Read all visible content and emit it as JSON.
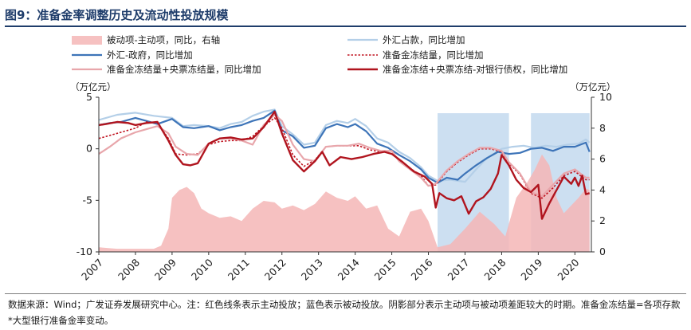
{
  "figure": {
    "title": "图9：准备金率调整历史及流动性投放规模",
    "note": "数据来源：Wind；广发证券发展研究中心。注：红色线条表示主动投放；蓝色表示被动投放。阴影部分表示主动项与被动项差距较大的时期。准备金冻结量=各项存款*大型银行准备金率变动。"
  },
  "chart_data": {
    "type": "line",
    "left_unit": "（万亿元）",
    "right_unit": "（万亿元）",
    "x_ticks": [
      "2007",
      "2008",
      "2009",
      "2010",
      "2011",
      "2012",
      "2013",
      "2014",
      "2015",
      "2016",
      "2017",
      "2018",
      "2019",
      "2020"
    ],
    "xlim": [
      2007.0,
      2020.45
    ],
    "y_left": {
      "ticks": [
        "5",
        "0",
        "-5",
        "-10"
      ],
      "values": [
        5,
        0,
        -5,
        -10
      ],
      "lim": [
        -10,
        5
      ]
    },
    "y_right": {
      "ticks": [
        "10",
        "8",
        "6",
        "4",
        "2",
        "0"
      ],
      "values": [
        10,
        8,
        6,
        4,
        2,
        0
      ],
      "lim": [
        0,
        10
      ]
    },
    "shaded_periods": [
      [
        2016.25,
        2018.2
      ],
      [
        2018.8,
        2020.4
      ]
    ],
    "legend_position": "top",
    "series": [
      {
        "name": "被动项-主动项，同比，右轴",
        "kind": "area",
        "axis": "right",
        "color": "#f4b6b6",
        "x": [
          2007.0,
          2007.5,
          2008.0,
          2008.5,
          2008.7,
          2008.9,
          2009.0,
          2009.2,
          2009.4,
          2009.6,
          2009.8,
          2010.0,
          2010.3,
          2010.6,
          2010.9,
          2011.2,
          2011.5,
          2011.8,
          2012.0,
          2012.3,
          2012.6,
          2012.9,
          2013.2,
          2013.5,
          2013.8,
          2014.0,
          2014.3,
          2014.6,
          2014.9,
          2015.2,
          2015.5,
          2015.8,
          2016.0,
          2016.25,
          2016.6,
          2017.0,
          2017.4,
          2017.8,
          2018.1,
          2018.4,
          2018.7,
          2018.9,
          2019.1,
          2019.3,
          2019.5,
          2019.7,
          2019.9,
          2020.1,
          2020.3,
          2020.4
        ],
        "y": [
          0.3,
          0.2,
          0.2,
          0.2,
          0.4,
          1.5,
          3.5,
          4.0,
          4.2,
          3.8,
          2.8,
          2.5,
          2.2,
          2.3,
          2.0,
          2.8,
          3.3,
          3.2,
          2.8,
          3.0,
          2.7,
          3.1,
          3.9,
          3.5,
          3.3,
          3.6,
          2.8,
          3.0,
          1.5,
          1.0,
          2.6,
          2.8,
          2.0,
          0.3,
          0.5,
          1.5,
          2.6,
          1.8,
          1.0,
          3.5,
          4.5,
          5.3,
          6.3,
          5.6,
          3.5,
          2.5,
          3.0,
          3.5,
          4.1,
          4.0
        ]
      },
      {
        "name": "外汇占款，同比增加",
        "kind": "line",
        "axis": "left",
        "color": "#b4cfe8",
        "width": 2.2,
        "dash": "",
        "x": [
          2007.0,
          2007.5,
          2008.0,
          2008.5,
          2009.0,
          2009.3,
          2009.6,
          2010.0,
          2010.3,
          2010.6,
          2010.9,
          2011.2,
          2011.5,
          2011.8,
          2012.0,
          2012.3,
          2012.6,
          2012.9,
          2013.2,
          2013.5,
          2013.8,
          2014.0,
          2014.3,
          2014.6,
          2014.9,
          2015.2,
          2015.5,
          2015.8,
          2016.0,
          2016.25,
          2016.6,
          2017.0,
          2017.3,
          2017.6,
          2018.0,
          2018.3,
          2018.6,
          2018.9,
          2019.2,
          2019.5,
          2019.8,
          2020.1,
          2020.3,
          2020.4
        ],
        "y": [
          2.8,
          3.3,
          3.5,
          3.2,
          3.0,
          2.2,
          2.3,
          2.2,
          2.0,
          2.4,
          2.6,
          3.2,
          3.6,
          3.8,
          2.2,
          1.4,
          0.4,
          0.6,
          2.3,
          2.7,
          2.5,
          2.9,
          2.2,
          1.0,
          0.6,
          -0.3,
          -0.9,
          -1.8,
          -2.6,
          -3.1,
          -3.0,
          -3.2,
          -2.0,
          -0.9,
          0.0,
          0.2,
          0.3,
          0.1,
          0.3,
          0.2,
          0.4,
          0.5,
          0.9,
          0.6
        ]
      },
      {
        "name": "外汇-政府，同比增加",
        "kind": "line",
        "axis": "left",
        "color": "#3d74b8",
        "width": 2.2,
        "dash": "",
        "x": [
          2007.0,
          2007.3,
          2007.6,
          2008.0,
          2008.3,
          2008.6,
          2009.0,
          2009.3,
          2009.6,
          2010.0,
          2010.3,
          2010.6,
          2010.9,
          2011.2,
          2011.5,
          2011.8,
          2012.0,
          2012.3,
          2012.6,
          2012.9,
          2013.2,
          2013.5,
          2013.8,
          2014.0,
          2014.3,
          2014.6,
          2014.9,
          2015.2,
          2015.5,
          2015.8,
          2016.0,
          2016.25,
          2016.5,
          2016.8,
          2017.0,
          2017.3,
          2017.6,
          2017.9,
          2018.2,
          2018.5,
          2018.8,
          2019.1,
          2019.4,
          2019.7,
          2020.0,
          2020.3,
          2020.4
        ],
        "y": [
          2.3,
          2.5,
          2.6,
          3.0,
          2.7,
          2.4,
          2.9,
          2.1,
          2.0,
          2.2,
          1.8,
          2.1,
          2.3,
          2.7,
          3.0,
          3.7,
          1.8,
          1.2,
          0.1,
          0.3,
          2.0,
          2.4,
          2.1,
          2.4,
          1.7,
          0.5,
          0.1,
          -0.6,
          -1.2,
          -2.0,
          -2.8,
          -3.3,
          -2.8,
          -3.0,
          -2.4,
          -1.6,
          -0.9,
          -0.3,
          -0.5,
          -0.4,
          0.0,
          0.1,
          -0.2,
          0.2,
          0.2,
          0.6,
          -0.3
        ]
      },
      {
        "name": "准备金冻结量，同比增加",
        "kind": "line",
        "axis": "left",
        "color": "#c0121f",
        "width": 1.6,
        "dash": "2.5 2",
        "x": [
          2007.0,
          2007.3,
          2007.6,
          2008.0,
          2008.3,
          2008.6,
          2008.9,
          2009.1,
          2009.4,
          2009.7,
          2010.0,
          2010.3,
          2010.6,
          2010.9,
          2011.2,
          2011.5,
          2011.8,
          2012.0,
          2012.3,
          2012.6,
          2012.9,
          2013.2,
          2013.5,
          2013.8,
          2014.1,
          2014.4,
          2014.7,
          2015.0,
          2015.2,
          2015.5,
          2015.8,
          2016.0,
          2016.2,
          2016.5,
          2016.8,
          2017.1,
          2017.4,
          2017.7,
          2018.0,
          2018.2,
          2018.5,
          2018.8,
          2019.1,
          2019.4,
          2019.7,
          2020.0,
          2020.3,
          2020.4
        ],
        "y": [
          1.0,
          1.3,
          1.6,
          2.0,
          2.6,
          2.5,
          1.0,
          -0.5,
          -0.6,
          -0.5,
          0.4,
          0.7,
          0.8,
          0.8,
          1.2,
          2.2,
          3.0,
          2.0,
          -0.6,
          -1.7,
          -1.1,
          0.2,
          0.3,
          0.3,
          0.3,
          -0.1,
          -0.3,
          -0.2,
          -1.2,
          -1.9,
          -2.6,
          -3.6,
          -3.5,
          -2.2,
          -1.3,
          -0.6,
          0.0,
          0.0,
          -0.3,
          -1.4,
          -2.5,
          -4.3,
          -4.8,
          -3.8,
          -2.6,
          -2.2,
          -3.0,
          -3.0
        ]
      },
      {
        "name": "准备金冻结量+央票冻结量，同比增加",
        "kind": "line",
        "axis": "left",
        "color": "#e8a6ab",
        "width": 2.2,
        "dash": "",
        "x": [
          2007.0,
          2007.3,
          2007.6,
          2008.0,
          2008.3,
          2008.6,
          2008.9,
          2009.1,
          2009.4,
          2009.7,
          2010.0,
          2010.3,
          2010.6,
          2010.9,
          2011.2,
          2011.5,
          2011.8,
          2012.0,
          2012.3,
          2012.6,
          2012.9,
          2013.2,
          2013.5,
          2013.8,
          2014.1,
          2014.4,
          2014.7,
          2015.0,
          2015.2,
          2015.5,
          2015.8,
          2016.0,
          2016.2,
          2016.5,
          2016.8,
          2017.1,
          2017.4,
          2017.7,
          2018.0,
          2018.2,
          2018.5,
          2018.8,
          2019.1,
          2019.4,
          2019.7,
          2020.0,
          2020.3,
          2020.4
        ],
        "y": [
          -0.5,
          0.2,
          1.0,
          1.6,
          1.9,
          2.2,
          1.5,
          0.2,
          -0.5,
          -0.6,
          0.5,
          1.0,
          1.0,
          0.8,
          0.4,
          2.3,
          3.3,
          2.7,
          0.4,
          -1.0,
          -1.2,
          0.2,
          0.3,
          0.3,
          0.5,
          0.1,
          -0.2,
          -0.2,
          -1.2,
          -2.0,
          -2.8,
          -3.6,
          -3.4,
          -2.1,
          -1.2,
          -0.5,
          0.1,
          0.1,
          -0.2,
          -1.3,
          -2.4,
          -4.2,
          -4.6,
          -3.5,
          -2.4,
          -2.0,
          -2.8,
          -2.8
        ]
      },
      {
        "name": "准备金冻结+央票冻结-对银行债权，同比增加",
        "kind": "line",
        "axis": "left",
        "color": "#b0141e",
        "width": 2.4,
        "dash": "",
        "x": [
          2007.0,
          2007.2,
          2007.5,
          2007.8,
          2008.0,
          2008.3,
          2008.6,
          2008.9,
          2009.1,
          2009.3,
          2009.5,
          2009.7,
          2010.0,
          2010.3,
          2010.6,
          2010.9,
          2011.2,
          2011.5,
          2011.8,
          2012.0,
          2012.3,
          2012.6,
          2012.9,
          2013.1,
          2013.3,
          2013.6,
          2013.9,
          2014.2,
          2014.5,
          2014.8,
          2015.0,
          2015.3,
          2015.6,
          2015.9,
          2016.1,
          2016.2,
          2016.3,
          2016.5,
          2016.7,
          2016.9,
          2017.1,
          2017.3,
          2017.5,
          2017.7,
          2017.9,
          2018.0,
          2018.2,
          2018.4,
          2018.6,
          2018.8,
          2019.0,
          2019.1,
          2019.3,
          2019.5,
          2019.7,
          2019.9,
          2020.0,
          2020.1,
          2020.2,
          2020.3,
          2020.4
        ],
        "y": [
          2.3,
          2.4,
          2.6,
          2.5,
          2.3,
          2.5,
          2.6,
          0.8,
          -0.6,
          -1.5,
          -1.6,
          -1.4,
          0.5,
          1.0,
          1.1,
          0.9,
          1.0,
          2.1,
          3.6,
          1.5,
          -1.1,
          -2.2,
          -1.2,
          -0.3,
          -1.6,
          -0.8,
          -1.0,
          -0.8,
          -0.5,
          -0.3,
          -0.5,
          -1.3,
          -2.2,
          -2.7,
          -3.4,
          -5.7,
          -4.3,
          -4.8,
          -5.0,
          -4.6,
          -6.3,
          -5.1,
          -4.7,
          -3.9,
          -2.4,
          -0.6,
          -1.6,
          -3.0,
          -3.8,
          -4.2,
          -3.5,
          -6.8,
          -5.3,
          -4.0,
          -2.7,
          -3.4,
          -2.8,
          -3.6,
          -2.6,
          -4.4,
          -4.3
        ]
      }
    ]
  }
}
